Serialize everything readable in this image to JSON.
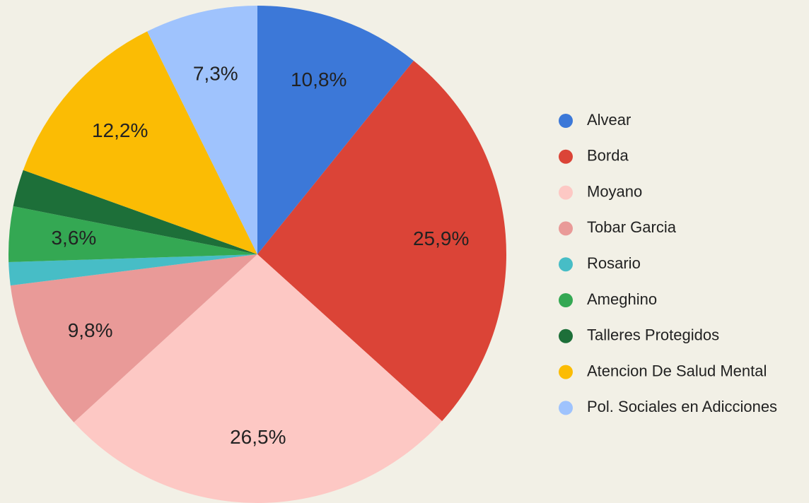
{
  "chart_data": {
    "type": "pie",
    "categories": [
      "Alvear",
      "Borda",
      "Moyano",
      "Tobar Garcia",
      "Rosario",
      "Ameghino",
      "Talleres Protegidos",
      "Atencion De Salud Mental",
      "Pol. Sociales en Adicciones"
    ],
    "values": [
      10.8,
      25.9,
      26.5,
      9.8,
      1.5,
      3.6,
      2.4,
      12.2,
      7.3
    ],
    "value_labels": [
      "10,8%",
      "25,9%",
      "26,5%",
      "9,8%",
      null,
      "3,6%",
      null,
      "12,2%",
      "7,3%"
    ],
    "colors": [
      "#3c78d8",
      "#db4437",
      "#fdc8c4",
      "#e99a98",
      "#47bdc6",
      "#34a853",
      "#1d6f39",
      "#fbbc04",
      "#9fc3fd"
    ],
    "legend": "right"
  }
}
